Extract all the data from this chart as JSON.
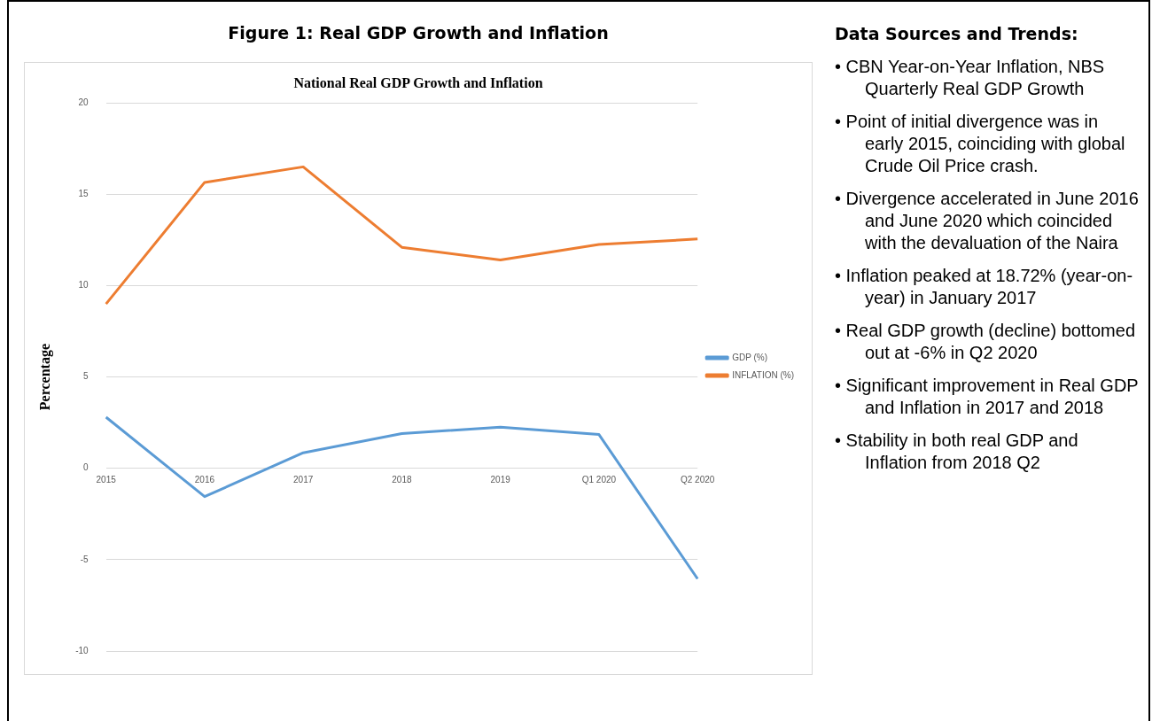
{
  "chart_data": {
    "type": "line",
    "title": "Figure 1: Real GDP Growth and Inflation",
    "subtitle": "National Real GDP Growth and Inflation",
    "ylabel": "Percentage",
    "categories": [
      "2015",
      "2016",
      "2017",
      "2018",
      "2019",
      "Q1 2020",
      "Q2 2020"
    ],
    "series": [
      {
        "name": "GDP (%)",
        "color": "#5b9bd5",
        "values": [
          2.8,
          -1.55,
          0.85,
          1.9,
          2.25,
          1.85,
          -6.05
        ]
      },
      {
        "name": "INFLATION (%)",
        "color": "#ed7d31",
        "values": [
          9.0,
          15.65,
          16.5,
          12.1,
          11.4,
          12.25,
          12.55
        ]
      }
    ],
    "ylim": [
      -10,
      20
    ],
    "yticks": [
      -10,
      -5,
      0,
      5,
      10,
      15,
      20
    ],
    "grid": "y",
    "legend": "right",
    "marker": "none",
    "line_style": "solid",
    "annotations": [
      "Data Sources and Trends:",
      "• CBN Year-on-Year Inflation, NBS Quarterly Real GDP Growth",
      "• Point of initial divergence was in early 2015, coinciding with global Crude Oil Price crash.",
      "• Divergence accelerated in June 2016 and June 2020 which coincided with the devaluation of the Naira",
      "• Inflation peaked at 18.72% (year-on-year) in January 2017",
      "• Real GDP growth (decline) bottomed out at -6% in Q2 2020",
      "• Significant improvement in Real GDP and Inflation in 2017 and 2018",
      "• Stability in both real GDP and Inflation from 2018 Q2"
    ]
  }
}
